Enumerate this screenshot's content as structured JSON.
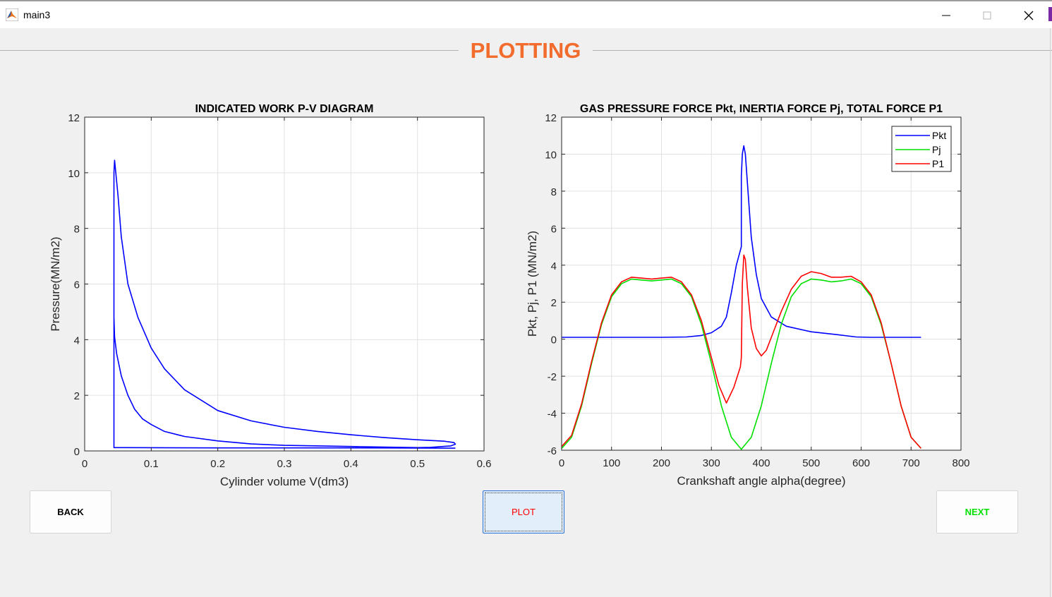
{
  "window": {
    "title": "main3"
  },
  "page": {
    "title": "PLOTTING"
  },
  "buttons": {
    "back": "BACK",
    "plot": "PLOT",
    "next": "NEXT"
  },
  "colors": {
    "accent": "#f26d2d",
    "pkt": "#0000ff",
    "pj": "#00e000",
    "p1": "#ff0000"
  },
  "chart_data": [
    {
      "type": "line",
      "title": "INDICATED WORK P-V DIAGRAM",
      "xlabel": "Cylinder volume V(dm3)",
      "ylabel": "Pressure(MN/m2)",
      "xlim": [
        0,
        0.6
      ],
      "ylim": [
        0,
        12
      ],
      "xticks": [
        0,
        0.1,
        0.2,
        0.3,
        0.4,
        0.5,
        0.6
      ],
      "yticks": [
        0,
        2,
        4,
        6,
        8,
        10,
        12
      ],
      "grid": true,
      "series": [
        {
          "color": "#0000ff",
          "x": [
            0.044,
            0.044,
            0.045,
            0.05,
            0.055,
            0.065,
            0.08,
            0.1,
            0.12,
            0.15,
            0.2,
            0.25,
            0.3,
            0.35,
            0.4,
            0.45,
            0.5,
            0.54,
            0.555,
            0.557,
            0.55,
            0.52,
            0.5,
            0.45,
            0.4,
            0.3,
            0.25,
            0.2,
            0.15,
            0.12,
            0.1,
            0.087,
            0.075,
            0.065,
            0.055,
            0.048,
            0.045,
            0.044,
            0.044,
            0.06,
            0.2,
            0.4,
            0.55,
            0.557
          ],
          "y": [
            4.8,
            10.0,
            10.45,
            9.2,
            7.7,
            6.0,
            4.8,
            3.7,
            2.95,
            2.2,
            1.45,
            1.08,
            0.85,
            0.7,
            0.58,
            0.48,
            0.4,
            0.35,
            0.3,
            0.24,
            0.18,
            0.13,
            0.12,
            0.14,
            0.16,
            0.2,
            0.25,
            0.36,
            0.52,
            0.7,
            0.95,
            1.15,
            1.5,
            2.0,
            2.7,
            3.5,
            4.1,
            4.8,
            0.12,
            0.12,
            0.11,
            0.11,
            0.1,
            0.1
          ]
        }
      ]
    },
    {
      "type": "line",
      "title": "GAS PRESSURE FORCE Pkt, INERTIA FORCE Pj, TOTAL FORCE P1",
      "xlabel": "Crankshaft angle alpha(degree)",
      "ylabel": "Pkt, Pj, P1 (MN/m2)",
      "xlim": [
        0,
        800
      ],
      "ylim": [
        -6,
        12
      ],
      "xticks": [
        0,
        100,
        200,
        300,
        400,
        500,
        600,
        700,
        800
      ],
      "yticks": [
        -6,
        -4,
        -2,
        0,
        2,
        4,
        6,
        8,
        10,
        12
      ],
      "grid": true,
      "legend": "top-right",
      "series": [
        {
          "name": "Pkt",
          "color": "#0000ff",
          "x": [
            0,
            100,
            200,
            250,
            280,
            300,
            320,
            330,
            340,
            350,
            360,
            360,
            362,
            365,
            368,
            372,
            380,
            390,
            400,
            420,
            450,
            500,
            550,
            590,
            620,
            720
          ],
          "y": [
            0.1,
            0.1,
            0.1,
            0.12,
            0.2,
            0.35,
            0.7,
            1.2,
            2.5,
            4.0,
            5.0,
            8.8,
            10.0,
            10.45,
            10.0,
            8.5,
            5.5,
            3.5,
            2.2,
            1.2,
            0.7,
            0.4,
            0.25,
            0.12,
            0.1,
            0.1
          ]
        },
        {
          "name": "Pj",
          "color": "#00e000",
          "x": [
            0,
            20,
            40,
            60,
            80,
            100,
            120,
            140,
            160,
            180,
            200,
            220,
            240,
            260,
            280,
            300,
            320,
            340,
            360,
            380,
            400,
            420,
            440,
            460,
            480,
            500,
            520,
            540,
            560,
            580,
            600,
            620,
            640,
            660,
            680,
            700,
            720
          ],
          "y": [
            -5.9,
            -5.3,
            -3.6,
            -1.3,
            0.8,
            2.3,
            3.0,
            3.25,
            3.2,
            3.15,
            3.2,
            3.25,
            3.0,
            2.3,
            0.8,
            -1.3,
            -3.6,
            -5.3,
            -5.95,
            -5.3,
            -3.6,
            -1.3,
            0.8,
            2.3,
            3.0,
            3.25,
            3.2,
            3.1,
            3.15,
            3.25,
            3.0,
            2.3,
            0.8,
            -1.3,
            -3.6,
            -5.3,
            -5.9
          ]
        },
        {
          "name": "P1",
          "color": "#ff0000",
          "x": [
            0,
            20,
            40,
            60,
            80,
            100,
            120,
            140,
            160,
            180,
            200,
            220,
            240,
            260,
            280,
            300,
            315,
            330,
            345,
            358,
            360,
            362,
            365,
            368,
            372,
            380,
            390,
            400,
            410,
            420,
            440,
            460,
            480,
            500,
            520,
            540,
            560,
            580,
            600,
            620,
            640,
            660,
            680,
            700,
            720
          ],
          "y": [
            -5.8,
            -5.2,
            -3.5,
            -1.2,
            0.9,
            2.4,
            3.1,
            3.35,
            3.3,
            3.25,
            3.3,
            3.35,
            3.1,
            2.4,
            1.0,
            -1.0,
            -2.5,
            -3.45,
            -2.6,
            -1.5,
            -1.0,
            3.0,
            4.55,
            4.3,
            2.8,
            0.6,
            -0.5,
            -0.9,
            -0.6,
            0.1,
            1.5,
            2.7,
            3.4,
            3.65,
            3.55,
            3.35,
            3.35,
            3.4,
            3.1,
            2.4,
            0.9,
            -1.3,
            -3.6,
            -5.3,
            -5.9
          ]
        }
      ]
    }
  ]
}
